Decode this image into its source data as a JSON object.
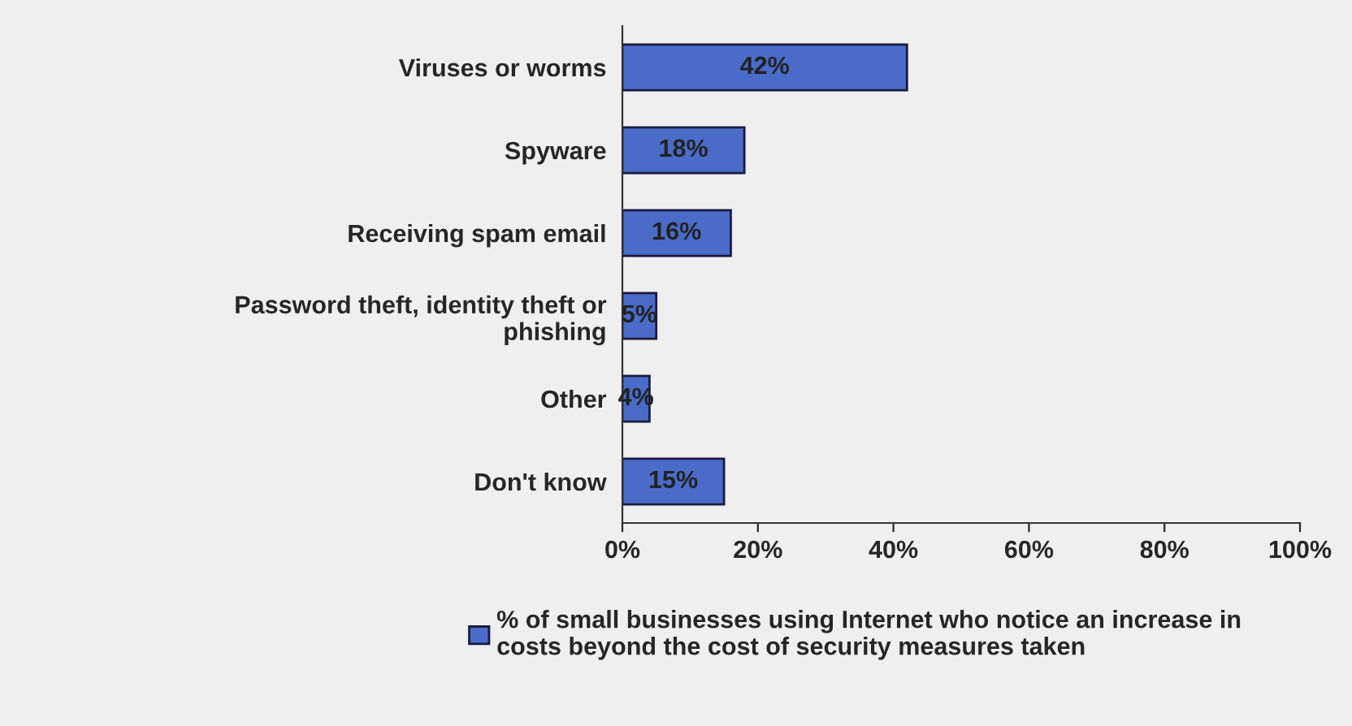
{
  "chart_data": {
    "type": "bar",
    "orientation": "horizontal",
    "categories": [
      "Viruses or worms",
      "Spyware",
      "Receiving spam email",
      "Password theft, identity theft or\nphishing",
      "Other",
      "Don't know"
    ],
    "series": [
      {
        "name": "% of small businesses using Internet who notice an increase in\ncosts beyond the cost of security measures taken",
        "color": "#4a6cc8",
        "values": [
          42,
          18,
          16,
          5,
          4,
          15
        ],
        "value_labels": [
          "42%",
          "18%",
          "16%",
          "5%",
          "4%",
          "15%"
        ]
      }
    ],
    "xlim": [
      0,
      100
    ],
    "xticks": [
      {
        "value": 0,
        "label": "0%"
      },
      {
        "value": 20,
        "label": "20%"
      },
      {
        "value": 40,
        "label": "40%"
      },
      {
        "value": 60,
        "label": "60%"
      },
      {
        "value": 80,
        "label": "80%"
      },
      {
        "value": 100,
        "label": "100%"
      }
    ],
    "grid": false,
    "legend": "bottom"
  }
}
